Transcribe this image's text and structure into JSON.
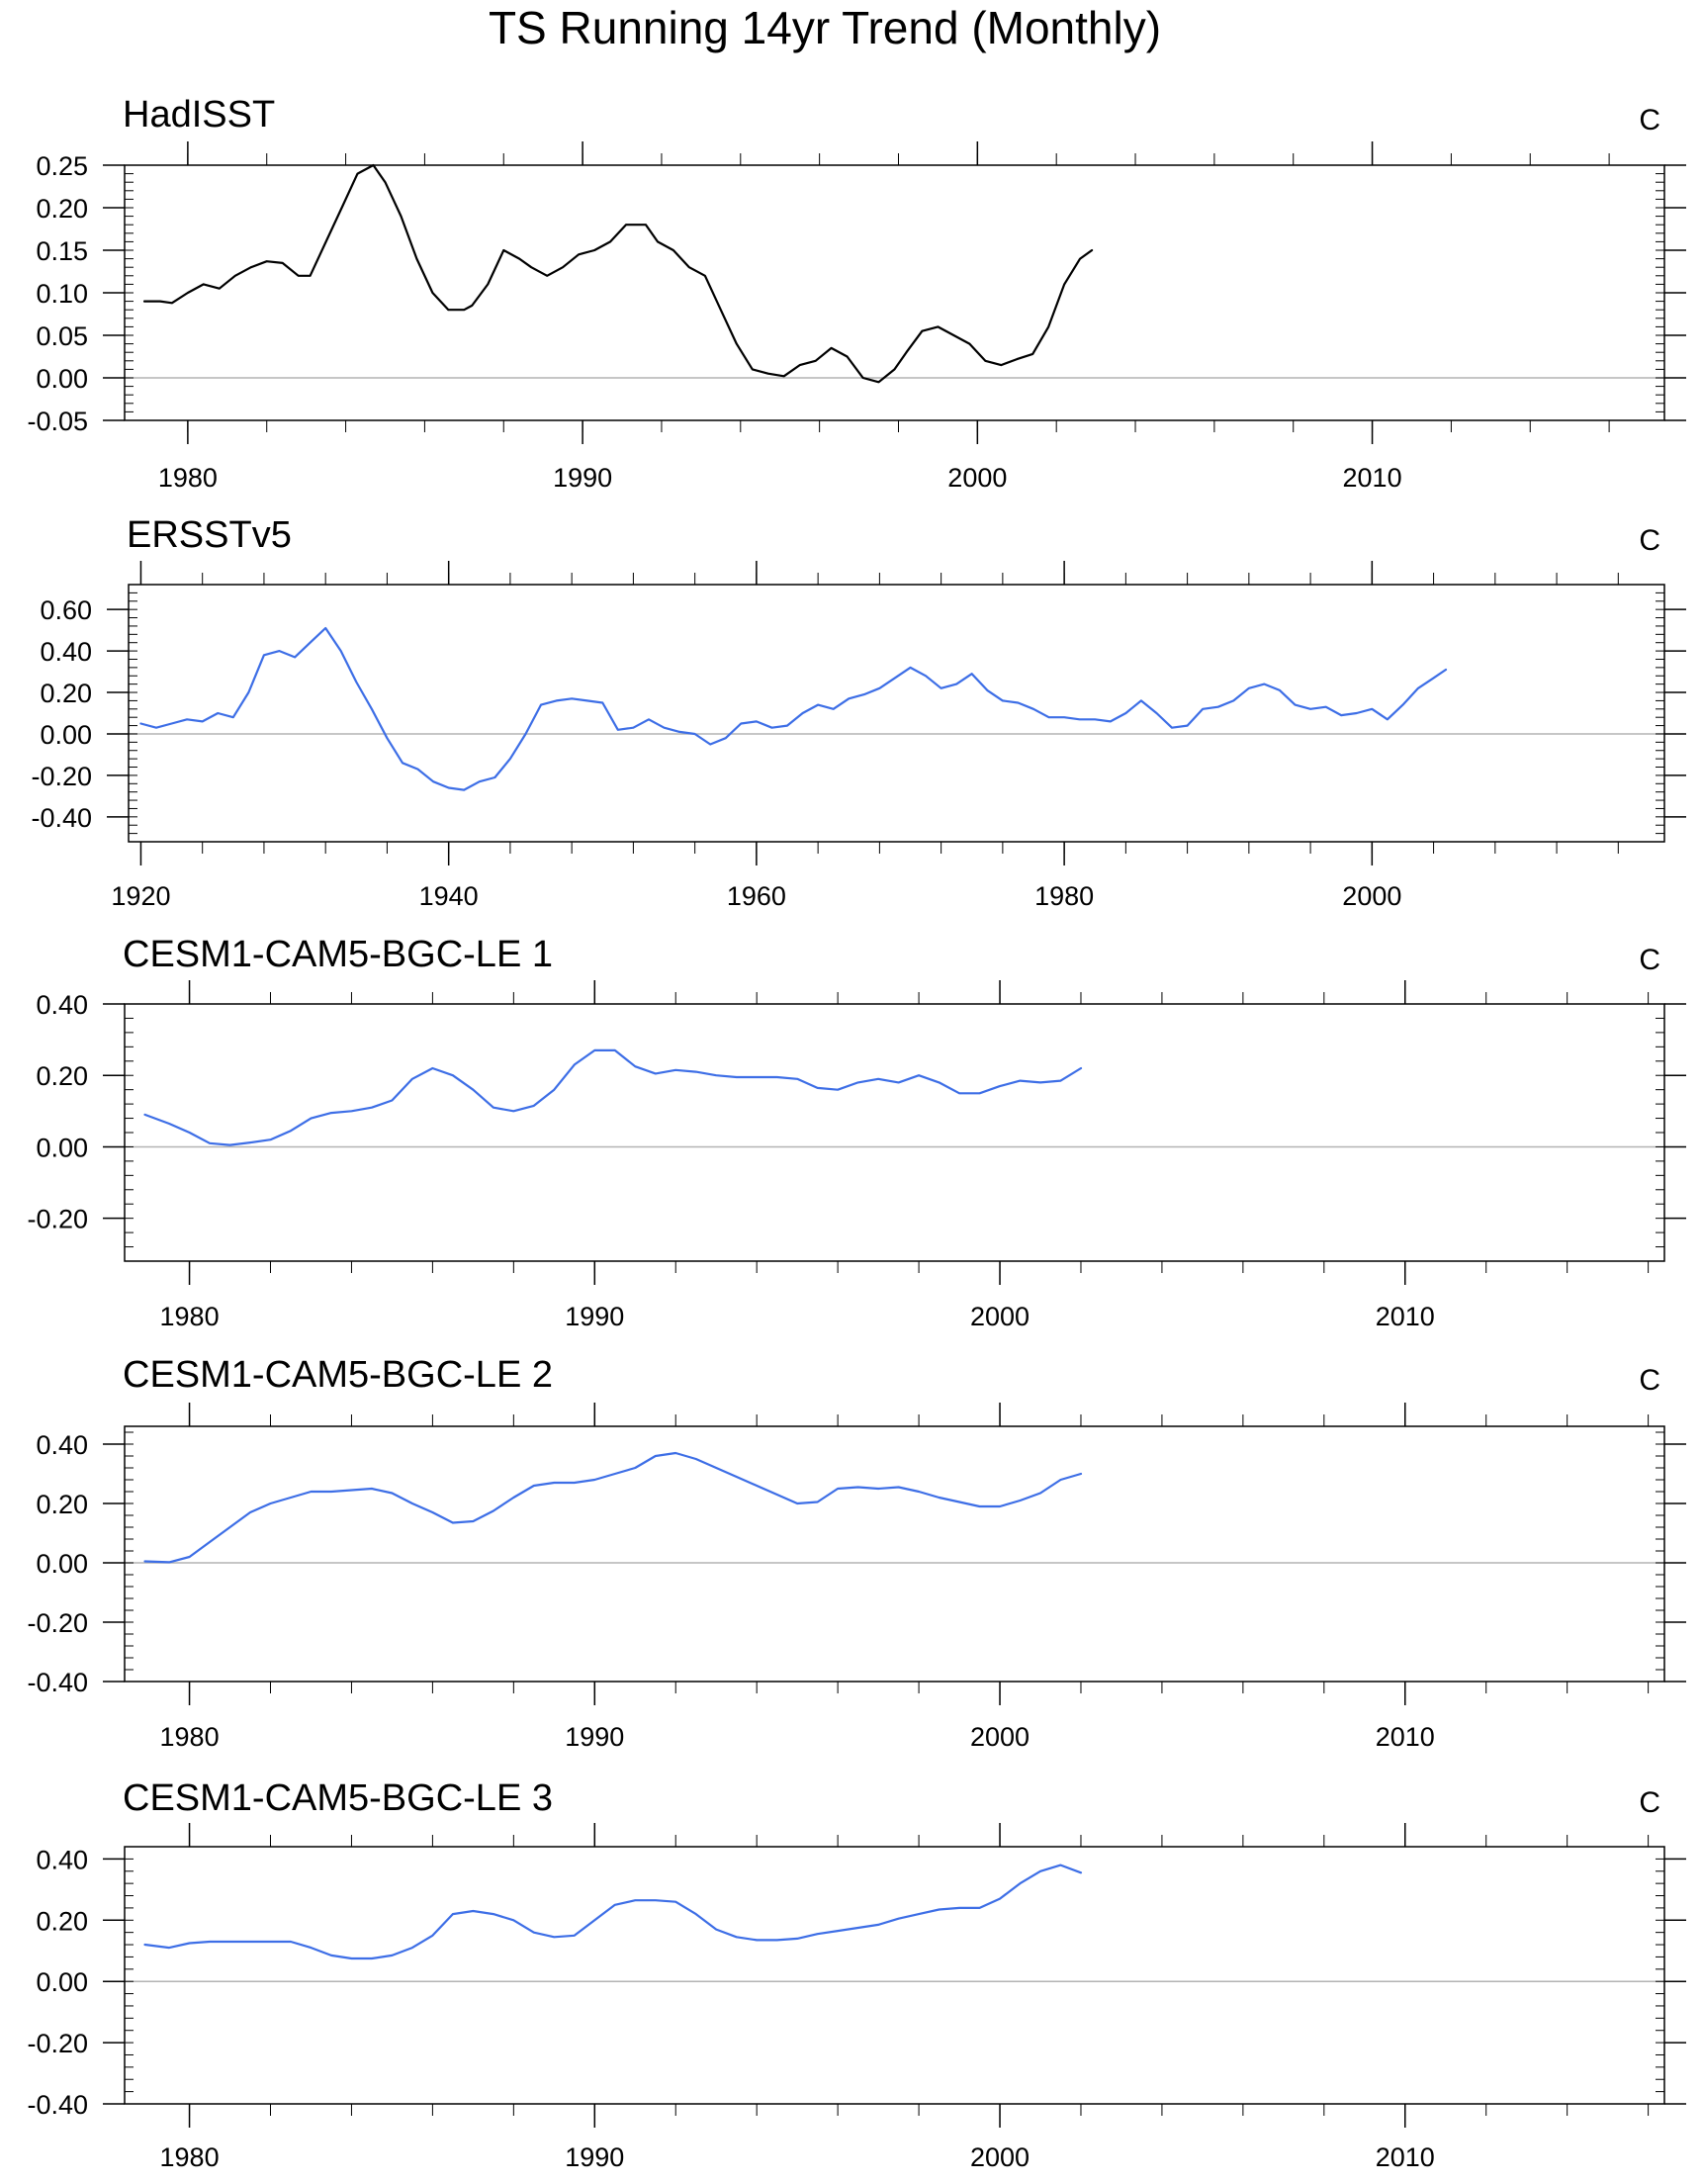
{
  "figure_title": "TS Running 14yr Trend (Monthly)",
  "colors": {
    "black": "#000000",
    "blue": "#3d6ee6",
    "zero_line": "#b3b3b3"
  },
  "chart_data": [
    {
      "type": "line",
      "title": "HadISST",
      "units": "C",
      "xlim": [
        1978.4,
        2017.4
      ],
      "ylim": [
        -0.05,
        0.25
      ],
      "xticks": [
        1980,
        1990,
        2000,
        2010
      ],
      "xtick_labels": [
        "1980",
        "1990",
        "2000",
        "2010"
      ],
      "yticks": [
        -0.05,
        0.0,
        0.05,
        0.1,
        0.15,
        0.2,
        0.25
      ],
      "ytick_labels": [
        "-0.05",
        "0.00",
        "0.05",
        "0.10",
        "0.15",
        "0.20",
        "0.25"
      ],
      "color": "black",
      "series": [
        {
          "name": "HadISST",
          "x": [
            1978.9,
            1979.3,
            1979.6,
            1980.0,
            1980.4,
            1980.8,
            1981.2,
            1981.6,
            1982.0,
            1982.4,
            1982.8,
            1983.1,
            1983.5,
            1983.9,
            1984.3,
            1984.7,
            1985.0,
            1985.4,
            1985.8,
            1986.2,
            1986.6,
            1987.0,
            1987.2,
            1987.6,
            1988.0,
            1988.4,
            1988.7,
            1989.1,
            1989.5,
            1989.9,
            1990.3,
            1990.7,
            1991.1,
            1991.6,
            1991.9,
            1992.3,
            1992.7,
            1993.1,
            1993.5,
            1993.9,
            1994.3,
            1994.7,
            1995.1,
            1995.5,
            1995.9,
            1996.3,
            1996.7,
            1997.1,
            1997.5,
            1997.9,
            1998.2,
            1998.6,
            1999.0,
            1999.4,
            1999.8,
            2000.2,
            2000.6,
            2001.0,
            2001.4,
            2001.8,
            2002.2,
            2002.6,
            2002.9
          ],
          "y": [
            0.09,
            0.09,
            0.088,
            0.1,
            0.11,
            0.105,
            0.12,
            0.13,
            0.137,
            0.135,
            0.12,
            0.12,
            0.16,
            0.2,
            0.24,
            0.25,
            0.23,
            0.19,
            0.14,
            0.1,
            0.08,
            0.08,
            0.085,
            0.11,
            0.15,
            0.14,
            0.13,
            0.12,
            0.13,
            0.145,
            0.15,
            0.16,
            0.18,
            0.18,
            0.16,
            0.15,
            0.13,
            0.12,
            0.08,
            0.04,
            0.01,
            0.005,
            0.002,
            0.015,
            0.02,
            0.035,
            0.025,
            0.0,
            -0.005,
            0.01,
            0.03,
            0.055,
            0.06,
            0.05,
            0.04,
            0.02,
            0.015,
            0.022,
            0.028,
            0.06,
            0.11,
            0.14,
            0.15
          ]
        }
      ]
    },
    {
      "type": "line",
      "title": "ERSSTv5",
      "units": "C",
      "xlim": [
        1919.2,
        2019.0
      ],
      "ylim": [
        -0.52,
        0.72
      ],
      "xticks": [
        1920,
        1940,
        1960,
        1980,
        2000
      ],
      "xtick_labels": [
        "1920",
        "1940",
        "1960",
        "1980",
        "2000"
      ],
      "yticks": [
        -0.4,
        -0.2,
        0.0,
        0.2,
        0.4,
        0.6
      ],
      "ytick_labels": [
        "-0.40",
        "-0.20",
        "0.00",
        "0.20",
        "0.40",
        "0.60"
      ],
      "color": "blue",
      "series": [
        {
          "name": "ERSSTv5",
          "x": [
            1920.0,
            1921.0,
            1922.0,
            1923.0,
            1924.0,
            1925.0,
            1926.0,
            1927.0,
            1928.0,
            1929.0,
            1930.0,
            1931.0,
            1932.0,
            1933.0,
            1934.0,
            1935.0,
            1936.0,
            1937.0,
            1938.0,
            1939.0,
            1940.0,
            1941.0,
            1942.0,
            1943.0,
            1944.0,
            1945.0,
            1946.0,
            1947.0,
            1948.0,
            1949.0,
            1950.0,
            1951.0,
            1952.0,
            1953.0,
            1954.0,
            1955.0,
            1956.0,
            1957.0,
            1958.0,
            1959.0,
            1960.0,
            1961.0,
            1962.0,
            1963.0,
            1964.0,
            1965.0,
            1966.0,
            1967.0,
            1968.0,
            1969.0,
            1970.0,
            1971.0,
            1972.0,
            1973.0,
            1974.0,
            1975.0,
            1976.0,
            1977.0,
            1978.0,
            1979.0,
            1980.0,
            1981.0,
            1982.0,
            1983.0,
            1984.0,
            1985.0,
            1986.0,
            1987.0,
            1988.0,
            1989.0,
            1990.0,
            1991.0,
            1992.0,
            1993.0,
            1994.0,
            1995.0,
            1996.0,
            1997.0,
            1998.0,
            1999.0,
            2000.0,
            2001.0,
            2002.0,
            2003.0,
            2004.0,
            2004.8
          ],
          "y": [
            0.05,
            0.03,
            0.05,
            0.07,
            0.06,
            0.1,
            0.08,
            0.2,
            0.38,
            0.4,
            0.37,
            0.44,
            0.51,
            0.4,
            0.25,
            0.12,
            -0.02,
            -0.14,
            -0.17,
            -0.23,
            -0.26,
            -0.27,
            -0.23,
            -0.21,
            -0.12,
            0.0,
            0.14,
            0.16,
            0.17,
            0.16,
            0.15,
            0.02,
            0.03,
            0.07,
            0.03,
            0.01,
            0.0,
            -0.05,
            -0.02,
            0.05,
            0.06,
            0.03,
            0.04,
            0.1,
            0.14,
            0.12,
            0.17,
            0.19,
            0.22,
            0.27,
            0.32,
            0.28,
            0.22,
            0.24,
            0.29,
            0.21,
            0.16,
            0.15,
            0.12,
            0.08,
            0.08,
            0.07,
            0.07,
            0.06,
            0.1,
            0.16,
            0.1,
            0.03,
            0.04,
            0.12,
            0.13,
            0.16,
            0.22,
            0.24,
            0.21,
            0.14,
            0.12,
            0.13,
            0.09,
            0.1,
            0.12,
            0.07,
            0.14,
            0.22,
            0.27,
            0.31
          ]
        }
      ]
    },
    {
      "type": "line",
      "title": "CESM1-CAM5-BGC-LE 1",
      "units": "C",
      "xlim": [
        1978.4,
        2016.4
      ],
      "ylim": [
        -0.32,
        0.4
      ],
      "xticks": [
        1980,
        1990,
        2000,
        2010
      ],
      "xtick_labels": [
        "1980",
        "1990",
        "2000",
        "2010"
      ],
      "yticks": [
        -0.2,
        0.0,
        0.2,
        0.4
      ],
      "ytick_labels": [
        "-0.20",
        "0.00",
        "0.20",
        "0.40"
      ],
      "color": "blue",
      "series": [
        {
          "name": "CESM1-CAM5-BGC-LE 1",
          "x": [
            1978.9,
            1979.5,
            1980.0,
            1980.5,
            1981.0,
            1981.5,
            1982.0,
            1982.5,
            1983.0,
            1983.5,
            1984.0,
            1984.5,
            1985.0,
            1985.5,
            1986.0,
            1986.5,
            1987.0,
            1987.5,
            1988.0,
            1988.5,
            1989.0,
            1989.5,
            1990.0,
            1990.5,
            1991.0,
            1991.5,
            1992.0,
            1992.5,
            1993.0,
            1993.5,
            1994.0,
            1994.5,
            1995.0,
            1995.5,
            1996.0,
            1996.5,
            1997.0,
            1997.5,
            1998.0,
            1998.5,
            1999.0,
            1999.5,
            2000.0,
            2000.5,
            2001.0,
            2001.5,
            2002.0
          ],
          "y": [
            0.09,
            0.065,
            0.04,
            0.01,
            0.005,
            0.012,
            0.02,
            0.045,
            0.08,
            0.095,
            0.1,
            0.11,
            0.13,
            0.19,
            0.22,
            0.2,
            0.16,
            0.11,
            0.1,
            0.115,
            0.16,
            0.23,
            0.27,
            0.27,
            0.225,
            0.205,
            0.215,
            0.21,
            0.2,
            0.195,
            0.195,
            0.195,
            0.19,
            0.165,
            0.16,
            0.18,
            0.19,
            0.18,
            0.2,
            0.18,
            0.15,
            0.15,
            0.17,
            0.185,
            0.18,
            0.185,
            0.22
          ]
        }
      ]
    },
    {
      "type": "line",
      "title": "CESM1-CAM5-BGC-LE 2",
      "units": "C",
      "xlim": [
        1978.4,
        2016.4
      ],
      "ylim": [
        -0.4,
        0.46
      ],
      "xticks": [
        1980,
        1990,
        2000,
        2010
      ],
      "xtick_labels": [
        "1980",
        "1990",
        "2000",
        "2010"
      ],
      "yticks": [
        -0.4,
        -0.2,
        0.0,
        0.2,
        0.4
      ],
      "ytick_labels": [
        "-0.40",
        "-0.20",
        "0.00",
        "0.20",
        "0.40"
      ],
      "color": "blue",
      "series": [
        {
          "name": "CESM1-CAM5-BGC-LE 2",
          "x": [
            1978.9,
            1979.5,
            1980.0,
            1980.5,
            1981.0,
            1981.5,
            1982.0,
            1982.5,
            1983.0,
            1983.5,
            1984.0,
            1984.5,
            1985.0,
            1985.5,
            1986.0,
            1986.5,
            1987.0,
            1987.5,
            1988.0,
            1988.5,
            1989.0,
            1989.5,
            1990.0,
            1990.5,
            1991.0,
            1991.5,
            1992.0,
            1992.5,
            1993.0,
            1993.5,
            1994.0,
            1994.5,
            1995.0,
            1995.5,
            1996.0,
            1996.5,
            1997.0,
            1997.5,
            1998.0,
            1998.5,
            1999.0,
            1999.5,
            2000.0,
            2000.5,
            2001.0,
            2001.5,
            2002.0
          ],
          "y": [
            0.005,
            0.002,
            0.02,
            0.07,
            0.12,
            0.17,
            0.2,
            0.22,
            0.24,
            0.24,
            0.245,
            0.25,
            0.235,
            0.2,
            0.17,
            0.135,
            0.14,
            0.175,
            0.22,
            0.26,
            0.27,
            0.27,
            0.28,
            0.3,
            0.32,
            0.36,
            0.37,
            0.35,
            0.32,
            0.29,
            0.26,
            0.23,
            0.2,
            0.205,
            0.25,
            0.255,
            0.25,
            0.255,
            0.24,
            0.22,
            0.205,
            0.19,
            0.19,
            0.21,
            0.235,
            0.28,
            0.3
          ]
        }
      ]
    },
    {
      "type": "line",
      "title": "CESM1-CAM5-BGC-LE 3",
      "units": "C",
      "xlim": [
        1978.4,
        2016.4
      ],
      "ylim": [
        -0.4,
        0.44
      ],
      "xticks": [
        1980,
        1990,
        2000,
        2010
      ],
      "xtick_labels": [
        "1980",
        "1990",
        "2000",
        "2010"
      ],
      "yticks": [
        -0.4,
        -0.2,
        0.0,
        0.2,
        0.4
      ],
      "ytick_labels": [
        "-0.40",
        "-0.20",
        "0.00",
        "0.20",
        "0.40"
      ],
      "color": "blue",
      "series": [
        {
          "name": "CESM1-CAM5-BGC-LE 3",
          "x": [
            1978.9,
            1979.5,
            1980.0,
            1980.5,
            1981.0,
            1981.5,
            1982.0,
            1982.5,
            1983.0,
            1983.5,
            1984.0,
            1984.5,
            1985.0,
            1985.5,
            1986.0,
            1986.5,
            1987.0,
            1987.5,
            1988.0,
            1988.5,
            1989.0,
            1989.5,
            1990.0,
            1990.5,
            1991.0,
            1991.5,
            1992.0,
            1992.5,
            1993.0,
            1993.5,
            1994.0,
            1994.5,
            1995.0,
            1995.5,
            1996.0,
            1996.5,
            1997.0,
            1997.5,
            1998.0,
            1998.5,
            1999.0,
            1999.5,
            2000.0,
            2000.5,
            2001.0,
            2001.5,
            2002.0
          ],
          "y": [
            0.12,
            0.11,
            0.125,
            0.13,
            0.13,
            0.13,
            0.13,
            0.13,
            0.11,
            0.085,
            0.075,
            0.075,
            0.085,
            0.11,
            0.15,
            0.22,
            0.23,
            0.22,
            0.2,
            0.16,
            0.145,
            0.15,
            0.2,
            0.25,
            0.265,
            0.265,
            0.26,
            0.22,
            0.17,
            0.145,
            0.135,
            0.135,
            0.14,
            0.155,
            0.165,
            0.175,
            0.185,
            0.205,
            0.22,
            0.235,
            0.24,
            0.24,
            0.27,
            0.32,
            0.36,
            0.38,
            0.355
          ]
        }
      ]
    }
  ]
}
